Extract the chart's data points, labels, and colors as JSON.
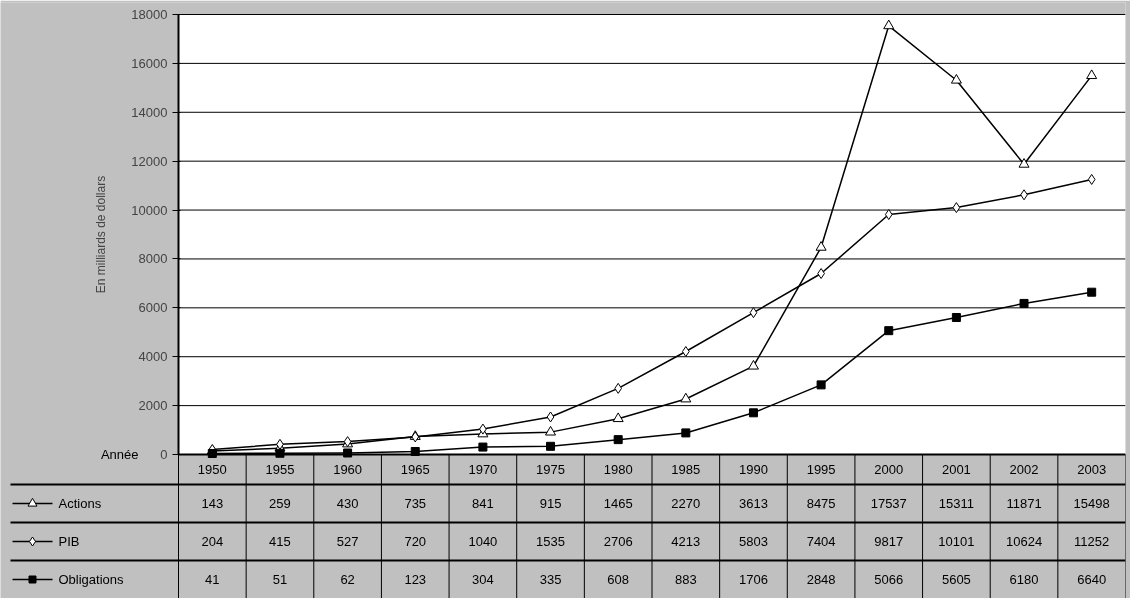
{
  "chart_data": {
    "type": "line",
    "ylabel": "En milliards de dollars",
    "annotations": [
      "Année"
    ],
    "categories": [
      "1950",
      "1955",
      "1960",
      "1965",
      "1970",
      "1975",
      "1980",
      "1985",
      "1990",
      "1995",
      "2000",
      "2001",
      "2002",
      "2003"
    ],
    "series": [
      {
        "name": "Actions",
        "color": "#000000",
        "marker": "triangle",
        "values": [
          143,
          259,
          430,
          735,
          841,
          915,
          1465,
          2270,
          3613,
          8475,
          17537,
          15311,
          11871,
          15498
        ]
      },
      {
        "name": "PIB",
        "color": "#000000",
        "marker": "diamond",
        "values": [
          204,
          415,
          527,
          720,
          1040,
          1535,
          2706,
          4213,
          5803,
          7404,
          9817,
          10101,
          10624,
          11252
        ]
      },
      {
        "name": "Obligations",
        "color": "#000000",
        "marker": "square",
        "values": [
          41,
          51,
          62,
          123,
          304,
          335,
          608,
          883,
          1706,
          2848,
          5066,
          5605,
          6180,
          6640
        ]
      }
    ],
    "ylim": [
      0,
      18000
    ],
    "yticks": [
      0,
      2000,
      4000,
      6000,
      8000,
      10000,
      12000,
      14000,
      16000,
      18000
    ],
    "grid": "y",
    "legend": "bottom",
    "data_labels": true,
    "line_style": "solid"
  }
}
